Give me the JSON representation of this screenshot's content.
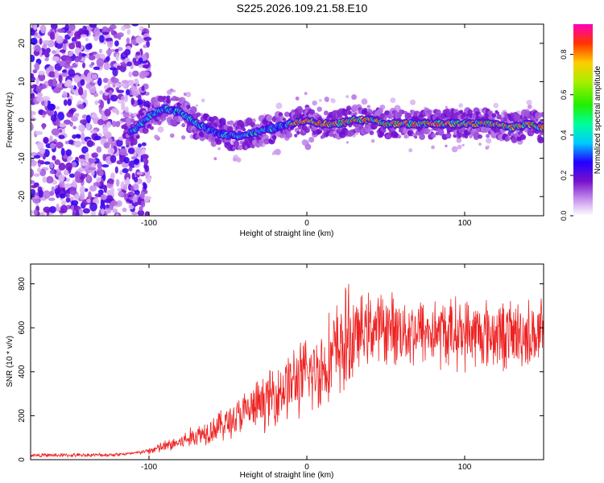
{
  "title": "S225.2026.109.21.58.E10",
  "chart_data": [
    {
      "type": "heatmap",
      "xlabel": "Height of straight line (km)",
      "ylabel": "Frequency (Hz)",
      "xlim": [
        -175,
        150
      ],
      "ylim": [
        -25,
        25
      ],
      "xticks": [
        -100,
        0,
        100
      ],
      "yticks": [
        -20,
        -10,
        0,
        10,
        20
      ],
      "ridge": {
        "description_points_x": [
          -110,
          -100,
          -90,
          -80,
          -70,
          -60,
          -50,
          -40,
          -30,
          -20,
          -10,
          0,
          10,
          20,
          30,
          40,
          50,
          60,
          70,
          80,
          90,
          100,
          110,
          120,
          130,
          140,
          150
        ],
        "frequency_hz": [
          -3,
          1,
          3,
          2,
          -1,
          -3,
          -4,
          -4,
          -3,
          -2,
          -1,
          0,
          -1,
          -1,
          0,
          0,
          -1,
          -1,
          -1,
          -1,
          -1,
          -1,
          -1,
          -1,
          -2,
          -1,
          -2
        ]
      },
      "colorbar": {
        "label": "Normalized spectral amplitude",
        "range": [
          0.0,
          0.95
        ],
        "ticks": [
          0.0,
          0.2,
          0.4,
          0.6,
          0.8
        ]
      }
    },
    {
      "type": "line",
      "xlabel": "Height of straight line (km)",
      "ylabel": "SNR (10 * v/v)",
      "xlim": [
        -175,
        150
      ],
      "ylim": [
        0,
        890
      ],
      "xticks": [
        -100,
        0,
        100
      ],
      "yticks": [
        0,
        200,
        400,
        600,
        800
      ],
      "series": [
        {
          "name": "SNR",
          "color": "#ee2222",
          "envelope_x": [
            -175,
            -150,
            -125,
            -110,
            -100,
            -90,
            -80,
            -70,
            -60,
            -50,
            -40,
            -30,
            -20,
            -10,
            0,
            10,
            20,
            30,
            40,
            50,
            60,
            80,
            100,
            120,
            140,
            150
          ],
          "envelope_mean": [
            20,
            20,
            22,
            28,
            40,
            60,
            80,
            110,
            140,
            170,
            210,
            250,
            300,
            350,
            380,
            420,
            500,
            560,
            600,
            600,
            590,
            580,
            575,
            570,
            570,
            570
          ]
        }
      ]
    }
  ]
}
